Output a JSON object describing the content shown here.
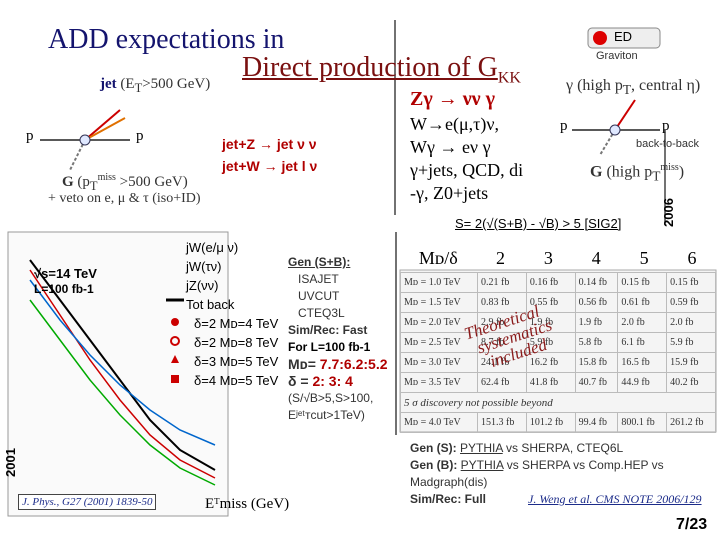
{
  "title": "ADD expectations in",
  "subtitle": {
    "text": "Direct production of G",
    "sub": "KK"
  },
  "badge": {
    "ed": "ED",
    "graviton": "Graviton"
  },
  "jet_channel": {
    "heading": {
      "bold": "jet",
      "pre": " (E",
      "sub": "T",
      "post": ">500 GeV)"
    },
    "proton_left": "p",
    "proton_right": "p",
    "processes": [
      "jet+Z → jet ν ν",
      "jet+W → jet l ν"
    ],
    "graviton": {
      "g": "G",
      "pre": " (p",
      "sub": "T",
      "sup": "miss",
      "post": " >500 GeV)"
    },
    "veto": "+ veto on e, μ & τ (iso+ID)"
  },
  "photon_backgrounds": [
    "Zγ → νν γ",
    "W→e(μ,τ)ν,",
    "Wγ → eν γ",
    "γ+jets, QCD, di",
    "-γ, Z0+jets"
  ],
  "photon_channel": {
    "heading": {
      "pre": "γ (high p",
      "sub": "T",
      "post": ", central η)"
    },
    "proton_left": "p",
    "proton_right": "p",
    "back_to_back": "back-to-back",
    "graviton": {
      "g": "G",
      "pre": " (high p",
      "sub": "T",
      "sup": "miss",
      "post": ")"
    },
    "year": "2006"
  },
  "significance": "S= 2(√(S+B) - √B) > 5 [SIG2]",
  "plot": {
    "energy": "√s=14 TeV",
    "lumi": "L=100 fb-1",
    "year": "2001",
    "reference": "J. Phys., G27 (2001) 1839-50",
    "xlabel": "Eᵀmiss (GeV)",
    "legend": [
      "jW(e/μ ν)",
      "jW(τν)",
      "jZ(νν)",
      "Tot back",
      "δ=2 Mᴅ=4 TeV",
      "δ=2 Mᴅ=8 TeV",
      "δ=3 Mᴅ=5 TeV",
      "δ=4 Mᴅ=5 TeV"
    ]
  },
  "gen_info": {
    "gen": "Gen (S+B):",
    "generators": [
      "ISAJET",
      "UVCUT",
      "CTEQ3L"
    ],
    "sim": "Sim/Rec: Fast",
    "lumi": "For L=100 fb-1",
    "md_label": "Mᴅ=",
    "md_values": "7.7:6.2:5.2",
    "delta_label": "δ =",
    "delta_values": "2: 3: 4",
    "cut": [
      "(S/√B>5,S>100,",
      "Eʲᵉᵗᴛcut>1TeV)"
    ]
  },
  "table": {
    "header": [
      "Mᴅ/δ",
      "2",
      "3",
      "4",
      "5",
      "6"
    ],
    "rows": [
      [
        "Mᴅ = 1.0 TeV",
        "0.21 fb",
        "0.16 fb",
        "0.14 fb",
        "0.15 fb",
        "0.15 fb"
      ],
      [
        "Mᴅ = 1.5 TeV",
        "0.83 fb",
        "0.55 fb",
        "0.56 fb",
        "0.61 fb",
        "0.59 fb"
      ],
      [
        "Mᴅ = 2.0 TeV",
        "2.9 fb",
        "1.9 fb",
        "1.9 fb",
        "2.0 fb",
        "2.0 fb"
      ],
      [
        "Mᴅ = 2.5 TeV",
        "8.7 fb",
        "5.9 fb",
        "5.8 fb",
        "6.1 fb",
        "5.9 fb"
      ],
      [
        "Mᴅ = 3.0 TeV",
        "24.1 fb",
        "16.2 fb",
        "15.8 fb",
        "16.5 fb",
        "15.9 fb"
      ],
      [
        "Mᴅ = 3.5 TeV",
        "62.4 fb",
        "41.8 fb",
        "40.7 fb",
        "44.9 fb",
        "40.2 fb"
      ],
      [
        "Mᴅ = 4.0 TeV",
        "151.3 fb",
        "101.2 fb",
        "99.4 fb",
        "800.1 fb",
        "261.2 fb"
      ]
    ],
    "note": "5 σ discovery not possible beyond",
    "overlay": [
      "Theoretical",
      "systematics",
      "included"
    ]
  },
  "credits": {
    "gen_s": "Gen (S):",
    "gen_s_value": [
      "PYTHIA",
      " vs SHERPA, CTEQ6L"
    ],
    "gen_b": "Gen (B):",
    "gen_b_value": [
      "PYTHIA",
      " vs SHERPA vs Comp.HEP vs",
      "Madgraph(dis)"
    ],
    "sim": "Sim/Rec: Full",
    "reference": "J. Weng et al. CMS NOTE 2006/129"
  },
  "page_number": "7/23"
}
